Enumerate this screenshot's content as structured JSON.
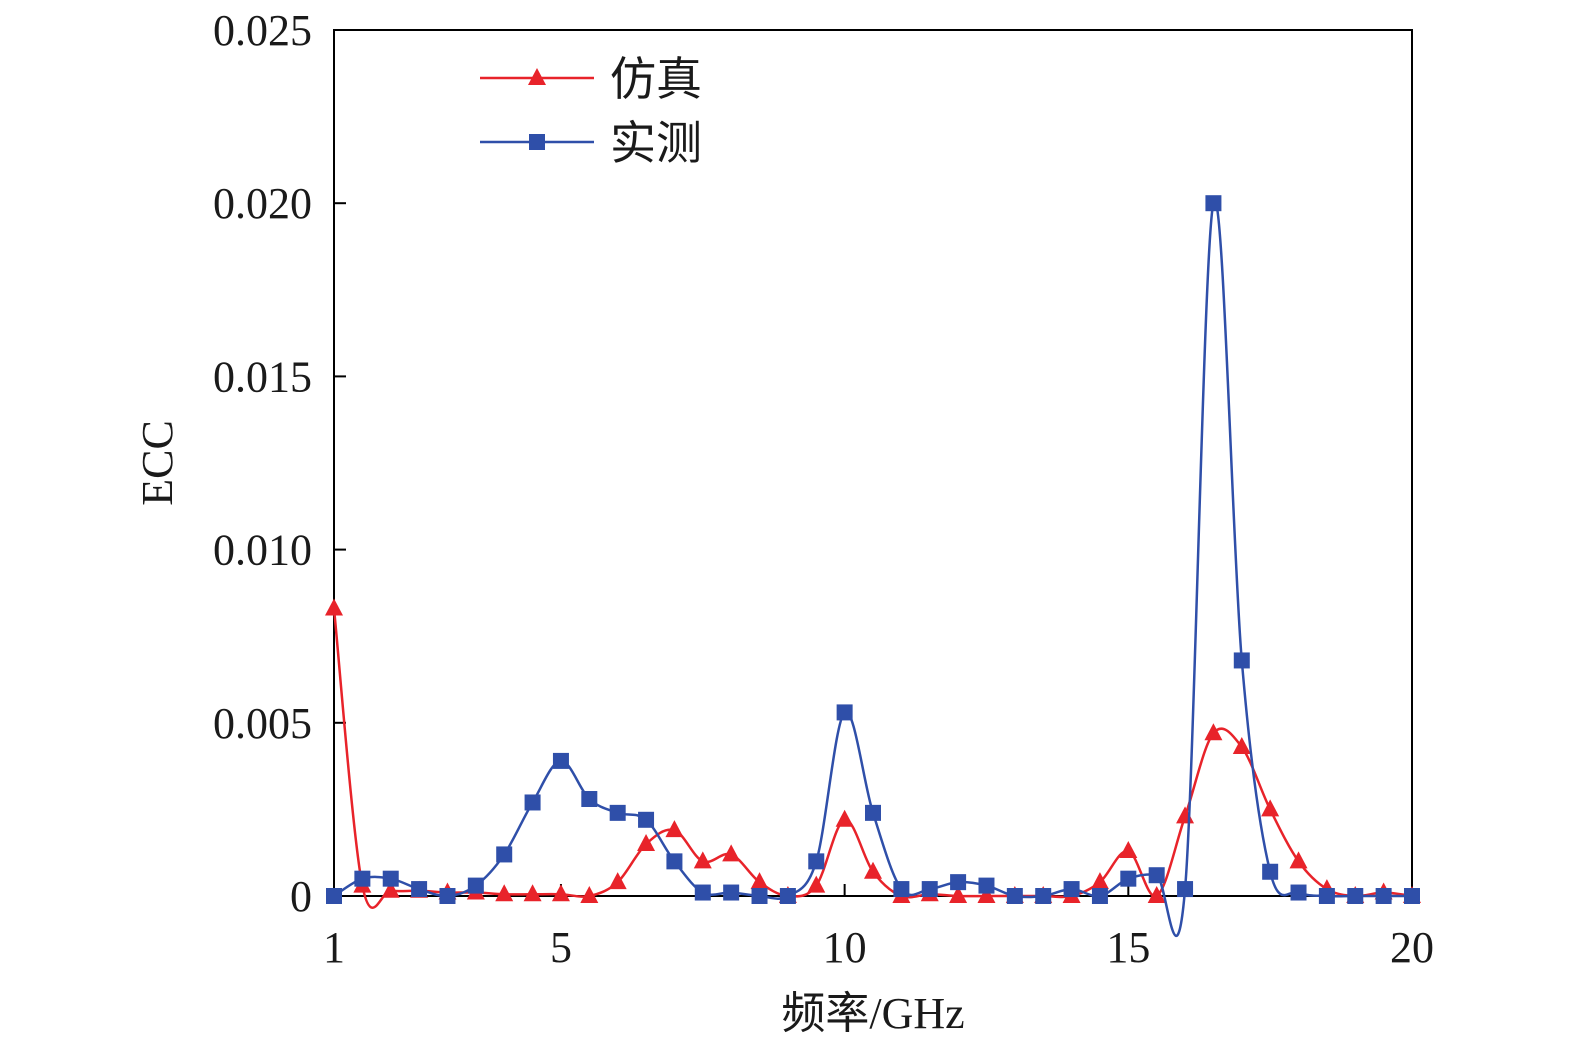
{
  "chart_data": {
    "type": "line",
    "title": "",
    "xlabel": "频率/GHz",
    "ylabel": "ECC",
    "xlim": [
      1,
      20
    ],
    "ylim": [
      0,
      0.025
    ],
    "x_ticks": [
      1,
      5,
      10,
      15,
      20
    ],
    "x_tick_labels": [
      "1",
      "5",
      "10",
      "15",
      "20"
    ],
    "y_ticks": [
      0,
      0.005,
      0.01,
      0.015,
      0.02,
      0.025
    ],
    "y_tick_labels": [
      "0",
      "0.005",
      "0.010",
      "0.015",
      "0.020",
      "0.025"
    ],
    "grid": false,
    "legend_position": "top-left",
    "series": [
      {
        "name": "仿真",
        "color": "#e8232a",
        "marker": "triangle",
        "points": [
          [
            1.0,
            0.0083
          ],
          [
            1.5,
            0.0003
          ],
          [
            2.0,
            0.00015
          ],
          [
            2.5,
            0.00015
          ],
          [
            3.0,
            0.0001
          ],
          [
            3.5,
            0.0001
          ],
          [
            4.0,
            5e-05
          ],
          [
            4.5,
            5e-05
          ],
          [
            5.0,
            5e-05
          ],
          [
            5.5,
            0.0
          ],
          [
            6.0,
            0.0004
          ],
          [
            6.5,
            0.0015
          ],
          [
            7.0,
            0.0019
          ],
          [
            7.5,
            0.001
          ],
          [
            8.0,
            0.0012
          ],
          [
            8.5,
            0.0004
          ],
          [
            9.0,
            0.0
          ],
          [
            9.5,
            0.0003
          ],
          [
            10.0,
            0.0022
          ],
          [
            10.5,
            0.0007
          ],
          [
            11.0,
            0.0
          ],
          [
            11.5,
            5e-05
          ],
          [
            12.0,
            0.0
          ],
          [
            12.5,
            0.0
          ],
          [
            13.0,
            0.0
          ],
          [
            13.5,
            0.0
          ],
          [
            14.0,
            0.0
          ],
          [
            14.5,
            0.0004
          ],
          [
            15.0,
            0.0013
          ],
          [
            15.5,
            0.0
          ],
          [
            16.0,
            0.0023
          ],
          [
            16.5,
            0.0047
          ],
          [
            17.0,
            0.0043
          ],
          [
            17.5,
            0.0025
          ],
          [
            18.0,
            0.001
          ],
          [
            18.5,
            0.0002
          ],
          [
            19.0,
            0.0
          ],
          [
            19.5,
            0.0001
          ],
          [
            20.0,
            0.0
          ]
        ]
      },
      {
        "name": "实测",
        "color": "#2f4fa9",
        "marker": "square",
        "points": [
          [
            1.0,
            0.0
          ],
          [
            1.5,
            0.0005
          ],
          [
            2.0,
            0.0005
          ],
          [
            2.5,
            0.0002
          ],
          [
            3.0,
            0.0
          ],
          [
            3.5,
            0.0003
          ],
          [
            4.0,
            0.0012
          ],
          [
            4.5,
            0.0027
          ],
          [
            5.0,
            0.0039
          ],
          [
            5.5,
            0.0028
          ],
          [
            6.0,
            0.0024
          ],
          [
            6.5,
            0.0022
          ],
          [
            7.0,
            0.001
          ],
          [
            7.5,
            0.0001
          ],
          [
            8.0,
            0.0001
          ],
          [
            8.5,
            0.0
          ],
          [
            9.0,
            0.0
          ],
          [
            9.5,
            0.001
          ],
          [
            10.0,
            0.0053
          ],
          [
            10.5,
            0.0024
          ],
          [
            11.0,
            0.0002
          ],
          [
            11.5,
            0.0002
          ],
          [
            12.0,
            0.0004
          ],
          [
            12.5,
            0.0003
          ],
          [
            13.0,
            0.0
          ],
          [
            13.5,
            0.0
          ],
          [
            14.0,
            0.0002
          ],
          [
            14.5,
            0.0
          ],
          [
            15.0,
            0.0005
          ],
          [
            15.5,
            0.0006
          ],
          [
            16.0,
            0.0002
          ],
          [
            16.5,
            0.02
          ],
          [
            17.0,
            0.0068
          ],
          [
            17.5,
            0.0007
          ],
          [
            18.0,
            0.0001
          ],
          [
            18.5,
            0.0
          ],
          [
            19.0,
            0.0
          ],
          [
            19.5,
            0.0
          ],
          [
            20.0,
            0.0
          ]
        ]
      }
    ]
  }
}
